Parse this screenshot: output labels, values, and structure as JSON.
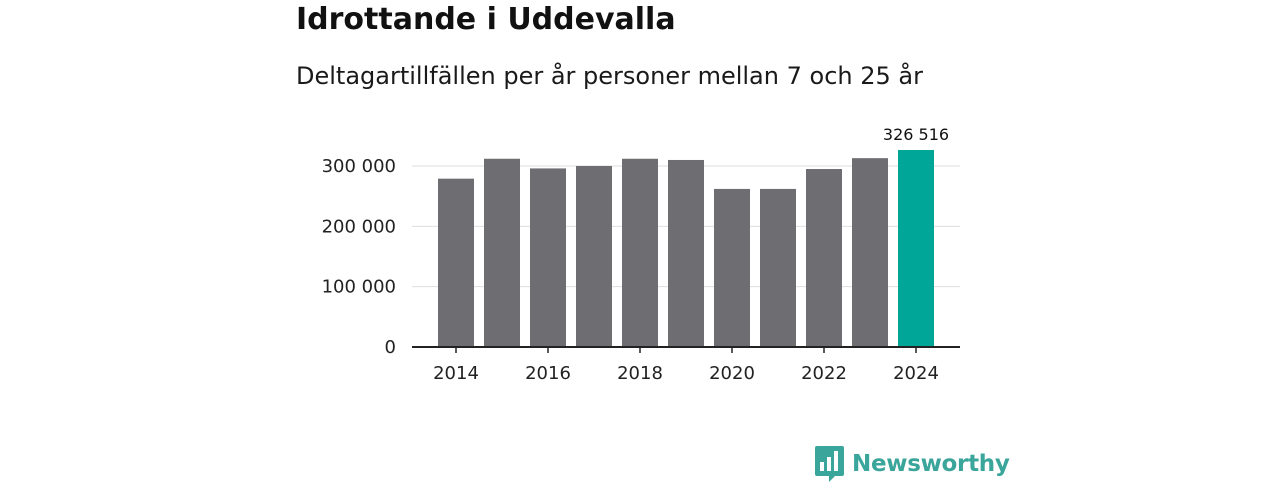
{
  "title": "Idrottande i Uddevalla",
  "subtitle": "Deltagartillfällen per år personer mellan 7 och 25 år",
  "brand": {
    "name": "Newsworthy",
    "color": "#3aa59a",
    "icon": "newsworthy-chart-logo-icon"
  },
  "colors": {
    "bar": "#6d6d72",
    "highlight": "#00a698",
    "axis": "#222222",
    "grid": "#dddddd"
  },
  "chart_data": {
    "type": "bar",
    "title": "Idrottande i Uddevalla",
    "subtitle": "Deltagartillfällen per år personer mellan 7 och 25 år",
    "xlabel": "",
    "ylabel": "",
    "categories": [
      "2014",
      "2015",
      "2016",
      "2017",
      "2018",
      "2019",
      "2020",
      "2021",
      "2022",
      "2023",
      "2024"
    ],
    "values": [
      279000,
      312000,
      296000,
      300000,
      312000,
      310000,
      262000,
      262000,
      295000,
      313000,
      326516
    ],
    "highlight_index": 10,
    "highlight_label": "326 516",
    "ylim": [
      0,
      330000
    ],
    "yticks": [
      0,
      100000,
      200000,
      300000
    ],
    "ytick_labels": [
      "0",
      "100 000",
      "200 000",
      "300 000"
    ],
    "xticks": [
      "2014",
      "2016",
      "2018",
      "2020",
      "2022",
      "2024"
    ],
    "grid": true,
    "legend": "none"
  }
}
